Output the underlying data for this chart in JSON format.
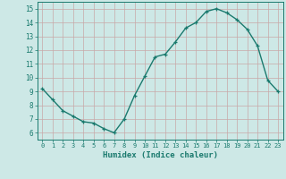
{
  "x": [
    0,
    1,
    2,
    3,
    4,
    5,
    6,
    7,
    8,
    9,
    10,
    11,
    12,
    13,
    14,
    15,
    16,
    17,
    18,
    19,
    20,
    21,
    22,
    23
  ],
  "y": [
    9.2,
    8.4,
    7.6,
    7.2,
    6.8,
    6.7,
    6.3,
    6.0,
    7.0,
    8.7,
    10.1,
    11.5,
    11.7,
    12.6,
    13.6,
    14.0,
    14.8,
    15.0,
    14.7,
    14.2,
    13.5,
    12.3,
    9.8,
    9.0
  ],
  "xlabel": "Humidex (Indice chaleur)",
  "line_color": "#1a7a6e",
  "bg_color": "#cde8e6",
  "grid_color": "#c8a8a8",
  "ylim": [
    5.5,
    15.5
  ],
  "xlim": [
    -0.5,
    23.5
  ],
  "yticks": [
    6,
    7,
    8,
    9,
    10,
    11,
    12,
    13,
    14,
    15
  ],
  "xticks": [
    0,
    1,
    2,
    3,
    4,
    5,
    6,
    7,
    8,
    9,
    10,
    11,
    12,
    13,
    14,
    15,
    16,
    17,
    18,
    19,
    20,
    21,
    22,
    23
  ]
}
